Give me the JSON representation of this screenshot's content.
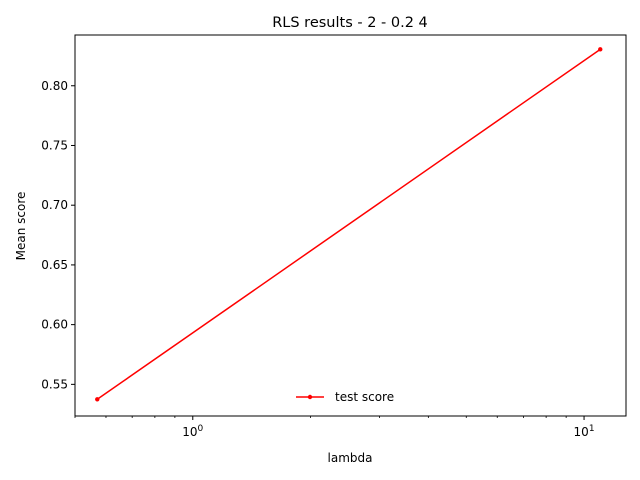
{
  "chart_data": {
    "type": "line",
    "title": "RLS results - 2 - 0.2 4",
    "xlabel": "lambda",
    "ylabel": "Mean score",
    "xscale": "log",
    "xlim": [
      0.5,
      12.8
    ],
    "ylim": [
      0.5235,
      0.8425
    ],
    "xticks": [
      {
        "value": 1,
        "label": "10^0"
      },
      {
        "value": 10,
        "label": "10^1"
      }
    ],
    "yticks": [
      {
        "value": 0.55,
        "label": "0.55"
      },
      {
        "value": 0.6,
        "label": "0.60"
      },
      {
        "value": 0.65,
        "label": "0.65"
      },
      {
        "value": 0.7,
        "label": "0.70"
      },
      {
        "value": 0.75,
        "label": "0.75"
      },
      {
        "value": 0.8,
        "label": "0.80"
      }
    ],
    "series": [
      {
        "name": "test score",
        "color": "#ff0000",
        "marker": "dot",
        "x": [
          0.57,
          11.0
        ],
        "y": [
          0.5375,
          0.8305
        ]
      }
    ],
    "legend": {
      "position": "lower-center"
    },
    "grid": false
  }
}
